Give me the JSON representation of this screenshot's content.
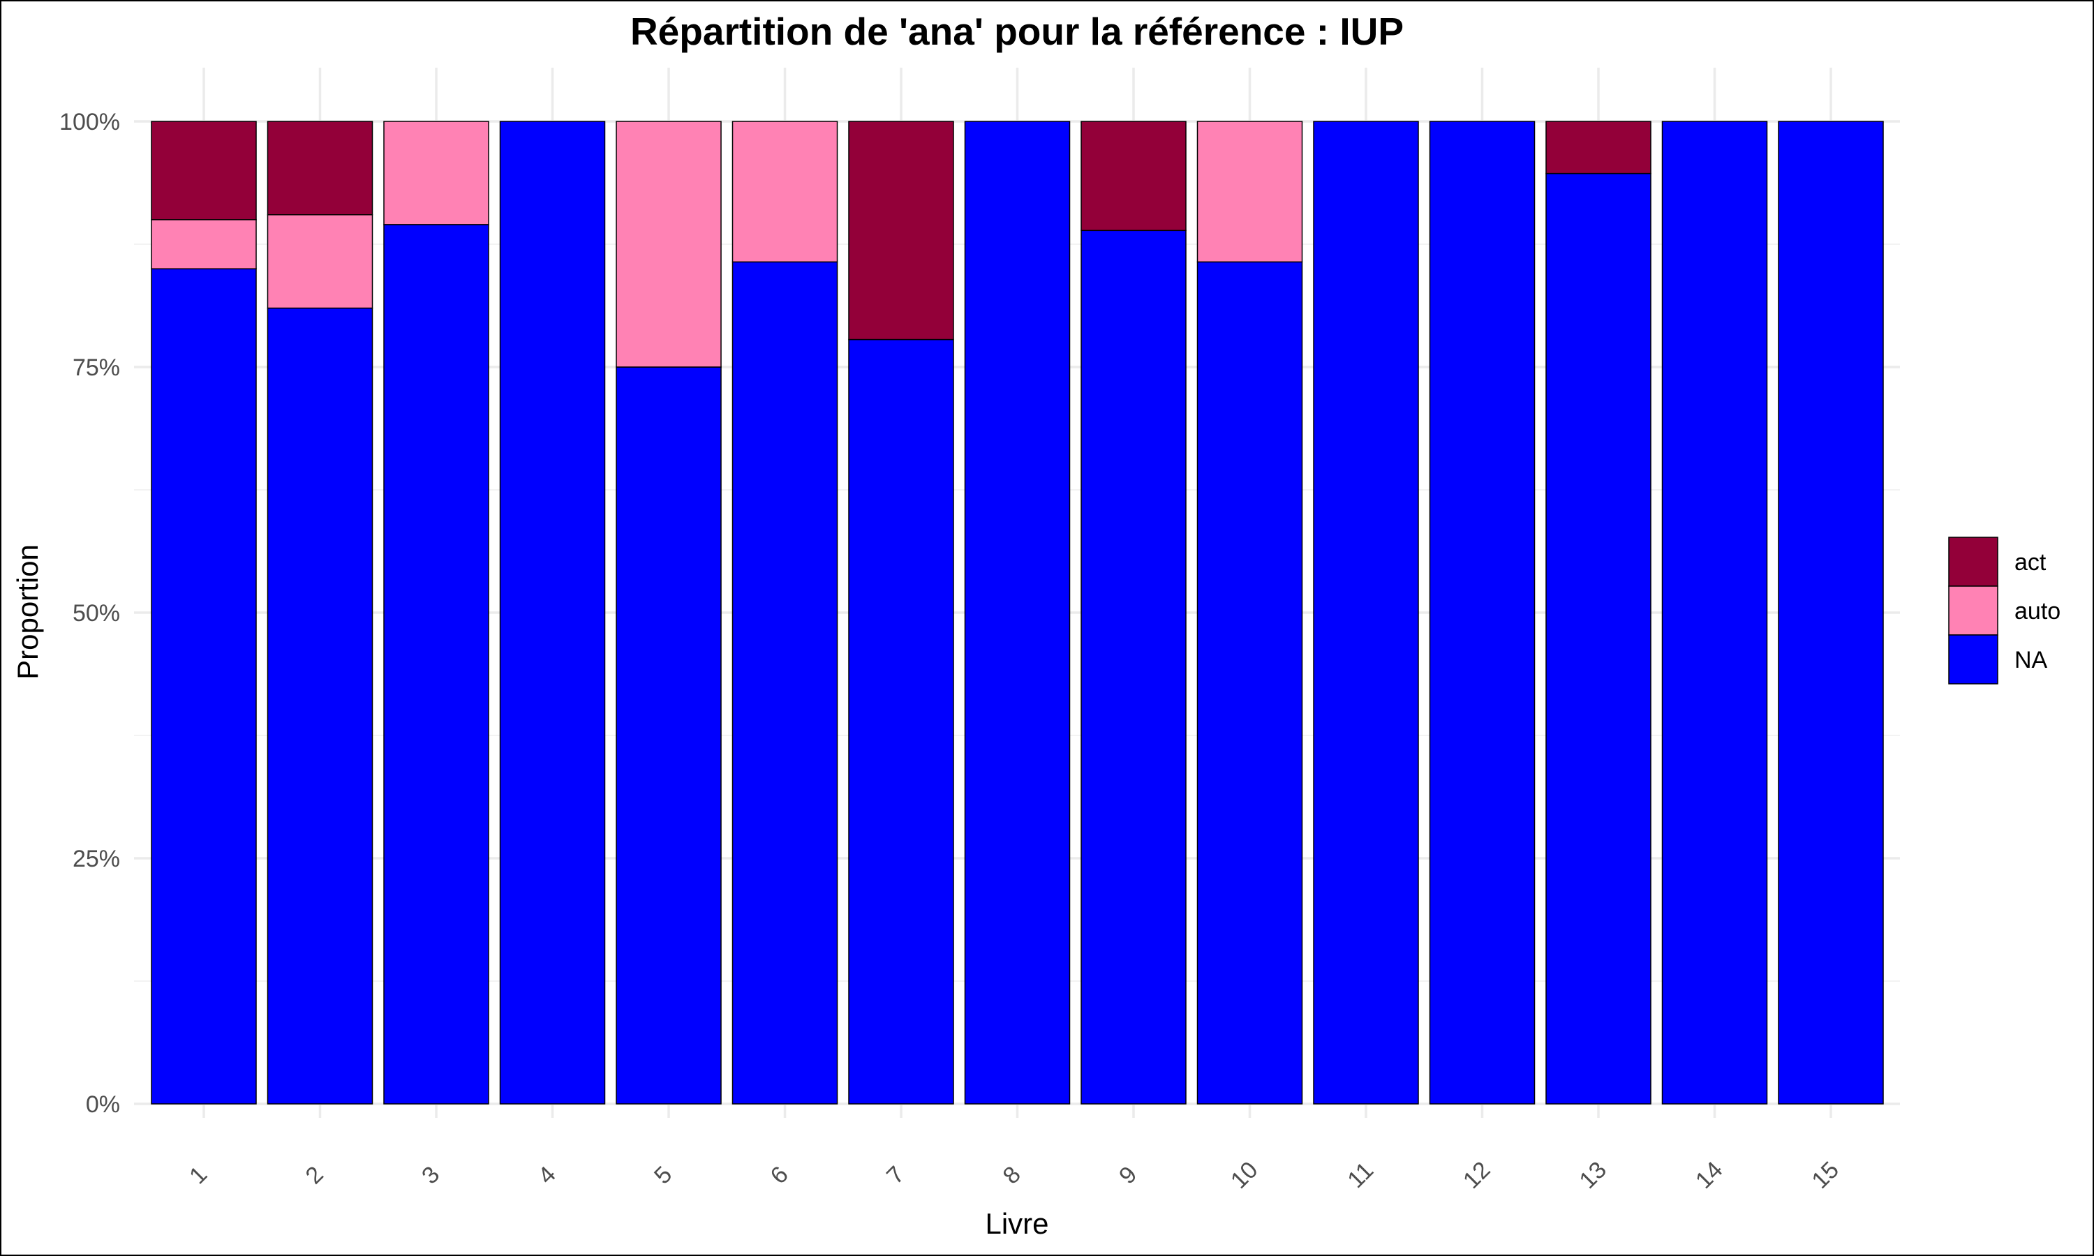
{
  "chart_data": {
    "type": "bar",
    "stacked": true,
    "normalized": true,
    "title": "Répartition de 'ana' pour la référence : IUP",
    "xlabel": "Livre",
    "ylabel": "Proportion",
    "ylim": [
      0,
      1
    ],
    "yticks": [
      {
        "value": 0,
        "label": "0%"
      },
      {
        "value": 0.25,
        "label": "25%"
      },
      {
        "value": 0.5,
        "label": "50%"
      },
      {
        "value": 0.75,
        "label": "75%"
      },
      {
        "value": 1,
        "label": "100%"
      }
    ],
    "categories": [
      "1",
      "2",
      "3",
      "4",
      "5",
      "6",
      "7",
      "8",
      "9",
      "10",
      "11",
      "12",
      "13",
      "14",
      "15"
    ],
    "series": [
      {
        "name": "NA",
        "color": "#0000ff",
        "values": [
          0.85,
          0.81,
          0.895,
          1.0,
          0.75,
          0.857,
          0.778,
          1.0,
          0.889,
          0.857,
          1.0,
          1.0,
          0.947,
          1.0,
          1.0
        ]
      },
      {
        "name": "auto",
        "color": "#ff82b4",
        "values": [
          0.05,
          0.095,
          0.105,
          0.0,
          0.25,
          0.143,
          0.0,
          0.0,
          0.0,
          0.143,
          0.0,
          0.0,
          0.0,
          0.0,
          0.0
        ]
      },
      {
        "name": "act",
        "color": "#930039",
        "values": [
          0.1,
          0.095,
          0.0,
          0.0,
          0.0,
          0.0,
          0.222,
          0.0,
          0.111,
          0.0,
          0.0,
          0.0,
          0.053,
          0.0,
          0.0
        ]
      }
    ],
    "legend": {
      "position": "right",
      "entries": [
        {
          "name": "act",
          "color": "#930039"
        },
        {
          "name": "auto",
          "color": "#ff82b4"
        },
        {
          "name": "NA",
          "color": "#0000ff"
        }
      ]
    },
    "grid": true,
    "x_tick_rotation": -45
  }
}
